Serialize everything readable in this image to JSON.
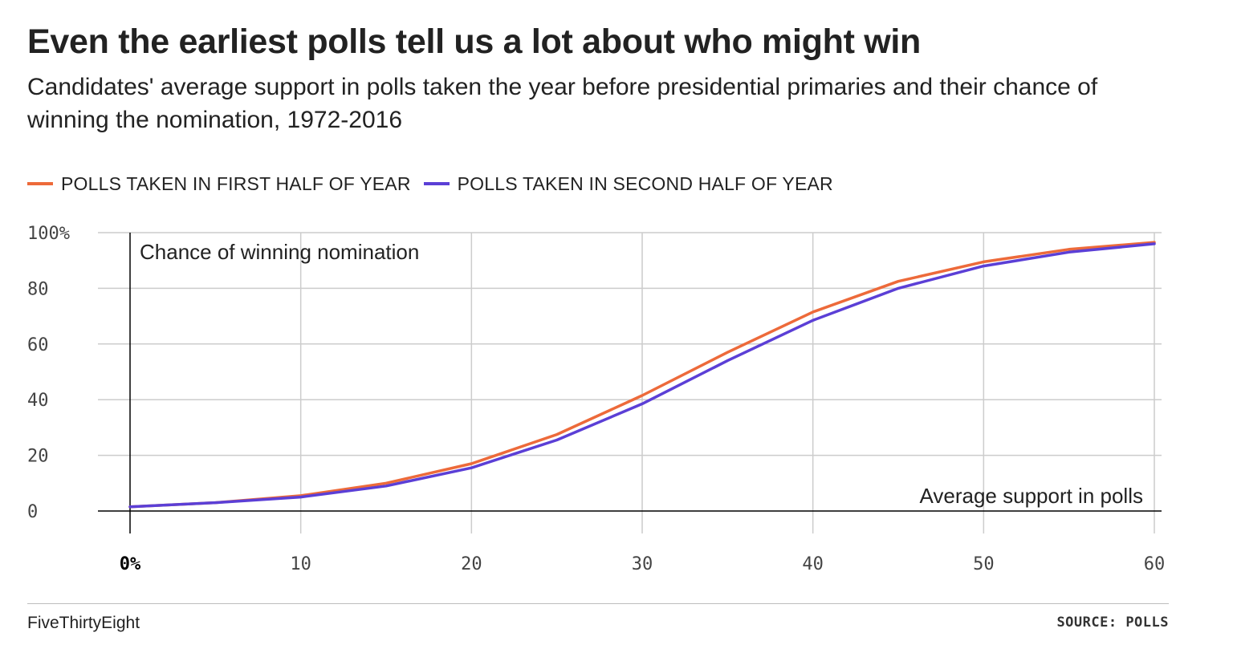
{
  "title": "Even the earliest polls tell us a lot about who might win",
  "subtitle": "Candidates' average support in polls taken the year before presidential primaries and their chance of winning the nomination, 1972-2016",
  "footer": {
    "brand": "FiveThirtyEight",
    "source": "SOURCE: POLLS"
  },
  "colors": {
    "first_half": "#ed6a3a",
    "second_half": "#5b3fd6",
    "grid": "#cccccc",
    "axis": "#000000"
  },
  "chart_data": {
    "type": "line",
    "title": "Even the earliest polls tell us a lot about who might win",
    "subtitle": "Candidates' average support in polls taken the year before presidential primaries and their chance of winning the nomination, 1972-2016",
    "xlabel": "Average support in polls",
    "ylabel": "Chance of winning nomination",
    "xlim": [
      0,
      60
    ],
    "ylim": [
      0,
      100
    ],
    "x_ticks": [
      0,
      10,
      20,
      30,
      40,
      50,
      60
    ],
    "x_tick_labels": [
      "0%",
      "10",
      "20",
      "30",
      "40",
      "50",
      "60"
    ],
    "y_ticks": [
      0,
      20,
      40,
      60,
      80,
      100
    ],
    "y_tick_labels": [
      "0",
      "20",
      "40",
      "60",
      "80",
      "100%"
    ],
    "grid": true,
    "legend": "top",
    "x": [
      0,
      5,
      10,
      15,
      20,
      25,
      30,
      35,
      40,
      45,
      50,
      55,
      60
    ],
    "series": [
      {
        "name": "Polls taken in first half of year",
        "color": "#ed6a3a",
        "values": [
          1.5,
          3,
          5.5,
          10,
          17,
          27.5,
          41.5,
          57,
          71.5,
          82.5,
          89.5,
          94,
          96.5
        ]
      },
      {
        "name": "Polls taken in second half of year",
        "color": "#5b3fd6",
        "values": [
          1.5,
          3,
          5,
          9,
          15.5,
          25.5,
          38.5,
          54,
          68.5,
          80,
          88,
          93,
          96
        ]
      }
    ]
  }
}
